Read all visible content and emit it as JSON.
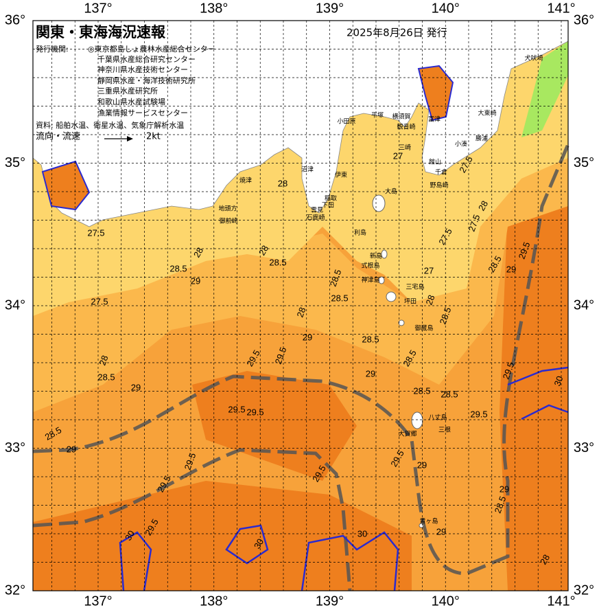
{
  "header": {
    "title": "関東・東海海況速報",
    "date": "2025年8月26日 発行",
    "issuer_label": "発行機関:",
    "issuers": [
      "◎東京都島しょ農林水産総合センター",
      "千葉県水産総合研究センター",
      "神奈川県水産技術センター",
      "静岡県水産・海洋技術研究所",
      "三重県水産研究所",
      "和歌山県水産試験場",
      "漁業情報サービスセンター"
    ],
    "source": "資料: 船舶水温、衛星水温、気象庁解析水温",
    "flow": "流向・流速",
    "scale": "2kt"
  },
  "axes": {
    "lon_labels": [
      "137°",
      "138°",
      "139°",
      "140°",
      "141°"
    ],
    "lat_labels": [
      "36°",
      "35°",
      "34°",
      "33°",
      "32°"
    ]
  },
  "places": [
    "犬吠埼",
    "大東崎",
    "勝浦",
    "小湊",
    "館山",
    "千倉",
    "野島崎",
    "富津",
    "横須賀",
    "観音崎",
    "三崎",
    "平塚",
    "小田原",
    "伊東",
    "稲取",
    "下田",
    "雲見",
    "石廊崎",
    "沼津",
    "焼津",
    "地頭方",
    "御前崎",
    "大島",
    "利島",
    "新島",
    "式根島",
    "神津島",
    "三宅島",
    "坪田",
    "御蔵島",
    "八丈島",
    "大賀郷",
    "三根",
    "青ヶ島"
  ],
  "isotherm_labels": [
    "27.5",
    "28.5",
    "29",
    "28",
    "28",
    "28.5",
    "27.5",
    "28",
    "28.5",
    "29",
    "28",
    "29.5",
    "29.5",
    "29",
    "28",
    "28.5",
    "28.5",
    "28.5",
    "29",
    "28.5",
    "28.5",
    "28.5",
    "28.5",
    "28",
    "27",
    "27.5",
    "27.5",
    "28",
    "27.5",
    "27",
    "28.5",
    "29",
    "29.5",
    "29.5",
    "29.5",
    "30",
    "28.5",
    "29",
    "29.5",
    "29.5",
    "29.5",
    "29.5",
    "29.5",
    "29",
    "29.5",
    "29.5",
    "29",
    "28.5",
    "29",
    "28",
    "30",
    "30",
    "30"
  ]
}
